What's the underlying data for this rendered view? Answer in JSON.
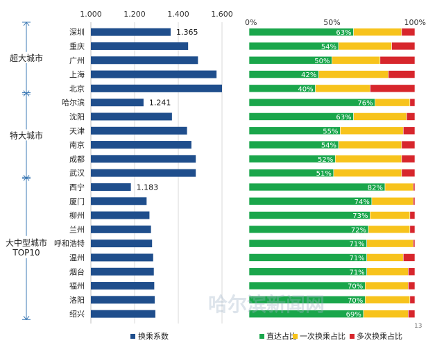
{
  "chart_data": [
    {
      "type": "bar",
      "orientation": "horizontal",
      "title": "",
      "axis_ticks": [
        "1.000",
        "1.200",
        "1.400",
        "1.600"
      ],
      "xlim": [
        1.0,
        1.65
      ],
      "categories": [
        "深圳",
        "重庆",
        "广州",
        "上海",
        "北京",
        "哈尔滨",
        "沈阳",
        "天津",
        "南京",
        "成都",
        "武汉",
        "西宁",
        "厦门",
        "柳州",
        "兰州",
        "呼和浩特",
        "温州",
        "烟台",
        "福州",
        "洛阳",
        "绍兴"
      ],
      "values": [
        1.365,
        1.445,
        1.49,
        1.575,
        1.6,
        1.241,
        1.371,
        1.44,
        1.46,
        1.48,
        1.48,
        1.183,
        1.255,
        1.268,
        1.275,
        1.28,
        1.285,
        1.288,
        1.29,
        1.292,
        1.295
      ],
      "data_labels": [
        {
          "category": "深圳",
          "text": "1.365"
        },
        {
          "category": "哈尔滨",
          "text": "1.241"
        },
        {
          "category": "西宁",
          "text": "1.183"
        }
      ],
      "legend": [
        "换乘系数"
      ],
      "color": "#1f4e8c",
      "groups": [
        {
          "label": "超大城市",
          "count": 5
        },
        {
          "label": "特大城市",
          "count": 6
        },
        {
          "label_lines": [
            "大中型城市",
            "TOP10"
          ],
          "count": 10
        }
      ]
    },
    {
      "type": "bar",
      "orientation": "horizontal",
      "stacked": true,
      "percent": true,
      "title": "",
      "axis_ticks": [
        "0%",
        "50%",
        "100%"
      ],
      "categories": [
        "深圳",
        "重庆",
        "广州",
        "上海",
        "北京",
        "哈尔滨",
        "沈阳",
        "天津",
        "南京",
        "成都",
        "武汉",
        "西宁",
        "厦门",
        "柳州",
        "兰州",
        "呼和浩特",
        "温州",
        "烟台",
        "福州",
        "洛阳",
        "绍兴"
      ],
      "series": [
        {
          "name": "直达占比",
          "color": "#1aa64b",
          "values": [
            63,
            54,
            50,
            42,
            40,
            76,
            63,
            55,
            54,
            52,
            51,
            82,
            74,
            73,
            72,
            71,
            71,
            71,
            70,
            70,
            69
          ]
        },
        {
          "name": "一次换乘占比",
          "color": "#f7c31c",
          "values": [
            29,
            32,
            29,
            42,
            33,
            21,
            32,
            38,
            38,
            40,
            41,
            17,
            25,
            24,
            25,
            28,
            22,
            25,
            26,
            27,
            27
          ]
        },
        {
          "name": "多次换乘占比",
          "color": "#d7262c",
          "values": [
            8,
            14,
            21,
            16,
            27,
            3,
            5,
            7,
            8,
            8,
            8,
            1,
            1,
            3,
            3,
            1,
            7,
            4,
            4,
            3,
            4
          ]
        }
      ],
      "label_format": "{v}%",
      "footnote": "13"
    }
  ],
  "watermark": "哈尔滨新闻网"
}
